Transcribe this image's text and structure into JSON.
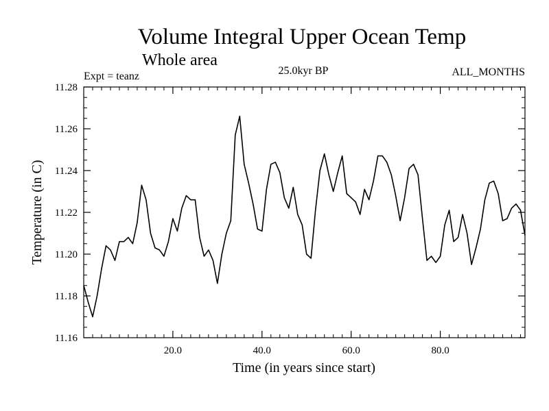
{
  "chart_data": {
    "type": "line",
    "title": "Volume Integral Upper Ocean Temp",
    "subtitle": "Whole area",
    "header_left": "Expt = teanz",
    "header_center": "25.0kyr BP",
    "header_right": "ALL_MONTHS",
    "xlabel": "Time (in years since start)",
    "ylabel": "Temperature (in C)",
    "xlim": [
      0,
      99
    ],
    "ylim": [
      11.16,
      11.28
    ],
    "x_ticks": [
      20,
      40,
      60,
      80
    ],
    "x_tick_labels": [
      "20.0",
      "40.0",
      "60.0",
      "80.0"
    ],
    "y_ticks": [
      11.16,
      11.18,
      11.2,
      11.22,
      11.24,
      11.26,
      11.28
    ],
    "y_tick_labels": [
      "11.16",
      "11.18",
      "11.20",
      "11.22",
      "11.24",
      "11.26",
      "11.28"
    ],
    "line_color": "#000000",
    "series": [
      {
        "name": "Temperature",
        "x": [
          0,
          1,
          2,
          3,
          4,
          5,
          6,
          7,
          8,
          9,
          10,
          11,
          12,
          13,
          14,
          15,
          16,
          17,
          18,
          19,
          20,
          21,
          22,
          23,
          24,
          25,
          26,
          27,
          28,
          29,
          30,
          31,
          32,
          33,
          34,
          35,
          36,
          37,
          38,
          39,
          40,
          41,
          42,
          43,
          44,
          45,
          46,
          47,
          48,
          49,
          50,
          51,
          52,
          53,
          54,
          55,
          56,
          57,
          58,
          59,
          60,
          61,
          62,
          63,
          64,
          65,
          66,
          67,
          68,
          69,
          70,
          71,
          72,
          73,
          74,
          75,
          76,
          77,
          78,
          79,
          80,
          81,
          82,
          83,
          84,
          85,
          86,
          87,
          88,
          89,
          90,
          91,
          92,
          93,
          94,
          95,
          96,
          97,
          98,
          99
        ],
        "values": [
          11.185,
          11.177,
          11.17,
          11.18,
          11.193,
          11.204,
          11.202,
          11.197,
          11.206,
          11.206,
          11.208,
          11.205,
          11.215,
          11.233,
          11.226,
          11.21,
          11.203,
          11.202,
          11.199,
          11.206,
          11.217,
          11.211,
          11.222,
          11.228,
          11.226,
          11.226,
          11.208,
          11.199,
          11.202,
          11.197,
          11.186,
          11.2,
          11.21,
          11.216,
          11.257,
          11.266,
          11.243,
          11.234,
          11.224,
          11.212,
          11.211,
          11.231,
          11.243,
          11.244,
          11.239,
          11.227,
          11.222,
          11.232,
          11.219,
          11.214,
          11.2,
          11.198,
          11.221,
          11.24,
          11.248,
          11.238,
          11.23,
          11.239,
          11.247,
          11.229,
          11.227,
          11.225,
          11.219,
          11.231,
          11.226,
          11.235,
          11.247,
          11.247,
          11.244,
          11.238,
          11.228,
          11.216,
          11.227,
          11.241,
          11.243,
          11.238,
          11.217,
          11.197,
          11.199,
          11.196,
          11.199,
          11.214,
          11.221,
          11.206,
          11.208,
          11.219,
          11.21,
          11.195,
          11.203,
          11.212,
          11.226,
          11.234,
          11.235,
          11.229,
          11.216,
          11.217,
          11.222,
          11.224,
          11.221,
          11.209
        ]
      }
    ]
  }
}
